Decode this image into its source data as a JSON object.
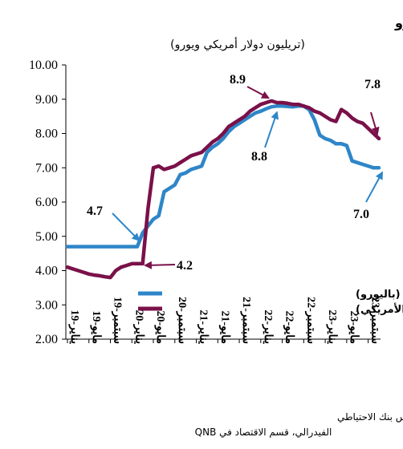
{
  "title": "أصول البنوك المركزية في الولايات المتحدة ومنطقة اليورو",
  "subtitle": "(تريليون دولار أمريكي ويورو)",
  "source": {
    "line1": "المصادر: البنك المركزي الأوروبي، مجلس بنك الاحتياطي",
    "line2": "الفيدرالي، قسم الاقتصاد في QNB"
  },
  "colors": {
    "ecb": "#2E86C8",
    "fed": "#7A1149"
  },
  "chart_data": {
    "type": "line",
    "ylim": [
      2.0,
      10.0
    ],
    "yticks": [
      "2.00",
      "3.00",
      "4.00",
      "5.00",
      "6.00",
      "7.00",
      "8.00",
      "9.00",
      "10.00"
    ],
    "grid": false,
    "legend_position": "bottom-right",
    "x_ticks": [
      "يناير-19",
      "مايو-19",
      "سبتمبر-19",
      "يناير-20",
      "مايو-20",
      "سبتمبر-20",
      "يناير-21",
      "مايو-21",
      "سبتمبر-21",
      "يناير-22",
      "مايو-22",
      "سبتمبر-22",
      "يناير-23",
      "مايو-23",
      "سبتمبر-23"
    ],
    "series": [
      {
        "name": "البنك المركزي الأوروبي (باليورو)",
        "color": "#2E86C8",
        "values": [
          4.7,
          4.7,
          4.7,
          4.7,
          4.7,
          4.7,
          4.7,
          4.7,
          4.7,
          4.7,
          4.7,
          4.7,
          4.7,
          4.7,
          5.1,
          5.3,
          5.5,
          5.6,
          6.3,
          6.4,
          6.5,
          6.8,
          6.85,
          6.95,
          7.0,
          7.05,
          7.45,
          7.6,
          7.7,
          7.85,
          8.05,
          8.2,
          8.3,
          8.4,
          8.5,
          8.6,
          8.65,
          8.72,
          8.78,
          8.8,
          8.8,
          8.79,
          8.78,
          8.8,
          8.8,
          8.7,
          8.4,
          7.95,
          7.85,
          7.8,
          7.7,
          7.7,
          7.65,
          7.2,
          7.15,
          7.1,
          7.05,
          7.0,
          7.0
        ]
      },
      {
        "name": "بنك الاحتياطي الفيدرالي (بالدولار الأمريكي)",
        "color": "#7A1149",
        "values": [
          4.1,
          4.05,
          4.0,
          3.95,
          3.9,
          3.87,
          3.85,
          3.82,
          3.8,
          4.0,
          4.1,
          4.15,
          4.2,
          4.2,
          4.2,
          5.8,
          7.0,
          7.05,
          6.95,
          7.0,
          7.05,
          7.15,
          7.25,
          7.35,
          7.4,
          7.45,
          7.6,
          7.75,
          7.85,
          8.0,
          8.2,
          8.3,
          8.4,
          8.5,
          8.65,
          8.75,
          8.85,
          8.9,
          8.95,
          8.9,
          8.9,
          8.88,
          8.85,
          8.85,
          8.8,
          8.75,
          8.65,
          8.6,
          8.5,
          8.4,
          8.35,
          8.7,
          8.6,
          8.45,
          8.35,
          8.3,
          8.15,
          8.0,
          7.85
        ]
      }
    ],
    "annotations": [
      {
        "text": "4.7",
        "series": 0,
        "point": 13
      },
      {
        "text": "4.2",
        "series": 1,
        "point": 13
      },
      {
        "text": "8.9",
        "series": 1,
        "point": 38
      },
      {
        "text": "8.8",
        "series": 0,
        "point": 39
      },
      {
        "text": "7.8",
        "series": 1,
        "point": 58
      },
      {
        "text": "7.0",
        "series": 0,
        "point": 58
      }
    ]
  }
}
